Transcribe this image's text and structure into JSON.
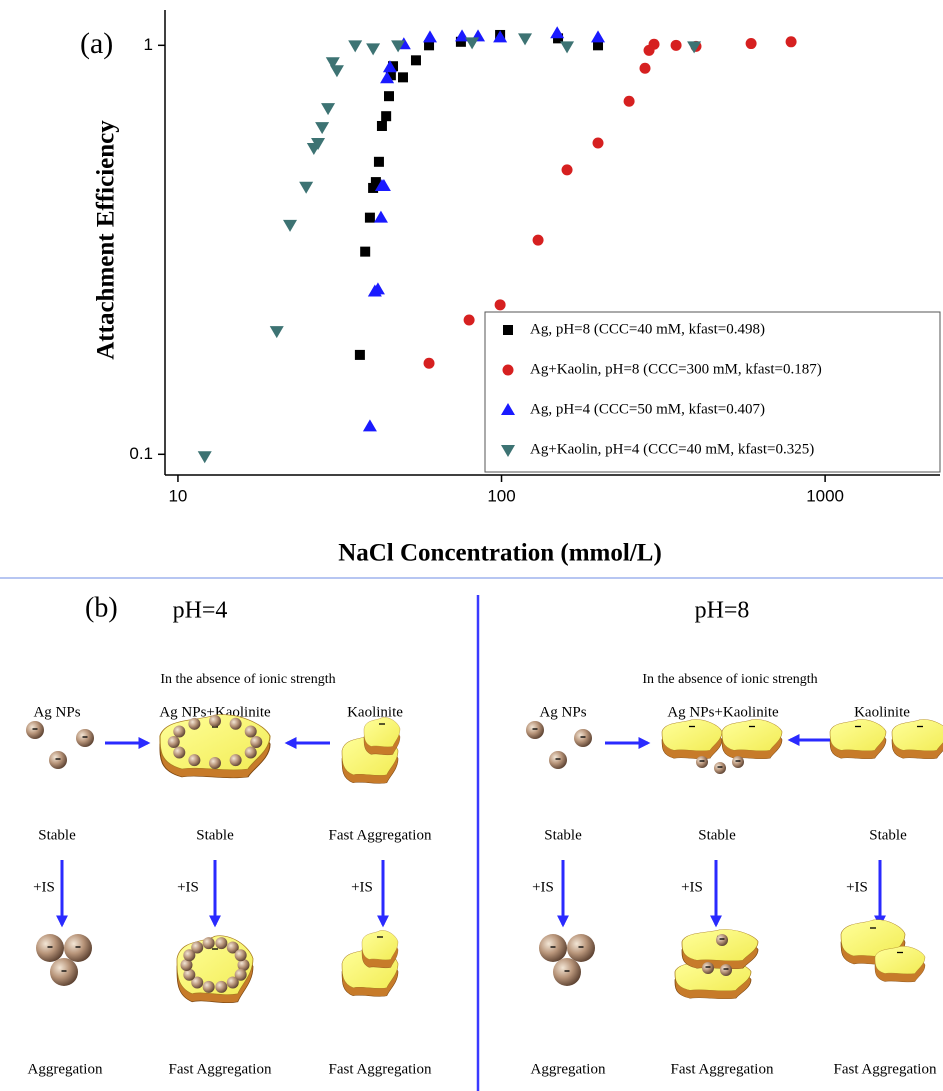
{
  "chart_data": {
    "type": "scatter",
    "panel_label": "(a)",
    "x_label": "NaCl Concentration (mmol/L)",
    "y_label": "Attachment Efficiency",
    "xscale": "log",
    "yscale": "log",
    "xlim": [
      9.12,
      2265
    ],
    "ylim": [
      0.089,
      1.22
    ],
    "xticks": [
      10,
      100,
      1000
    ],
    "yticks": [
      0.1,
      1
    ],
    "legend": "lower right",
    "series": [
      {
        "name": "Ag, pH=8 (CCC=40 mM, kfast=0.498)",
        "color": "#000000",
        "marker": "square",
        "x": [
          36.5,
          37.9,
          39.2,
          40.1,
          40.9,
          41.8,
          42.7,
          44.0,
          44.9,
          45.5,
          46.2,
          49.6,
          54.4,
          59.7,
          74.9,
          99,
          149.5,
          198.7
        ],
        "values": [
          0.175,
          0.313,
          0.379,
          0.448,
          0.463,
          0.519,
          0.635,
          0.671,
          0.751,
          0.845,
          0.889,
          0.835,
          0.919,
          1.0,
          1.02,
          1.06,
          1.04,
          1.0
        ]
      },
      {
        "name": "Ag+Kaolin, pH=8 (CCC=300 mM, kfast=0.187)",
        "color": "#d62020",
        "marker": "circle",
        "x": [
          59.7,
          79.4,
          99,
          129.7,
          159.4,
          198.7,
          247.9,
          277.6,
          285.7,
          296,
          346.3,
          399,
          590.6,
          785
        ],
        "values": [
          0.167,
          0.213,
          0.232,
          0.334,
          0.496,
          0.577,
          0.73,
          0.879,
          0.972,
          1.006,
          1.0,
          0.994,
          1.01,
          1.02
        ]
      },
      {
        "name": "Ag, pH=4 (CCC=50 mM, kfast=0.407)",
        "color": "#1a1aff",
        "marker": "triangle-up",
        "x": [
          39.2,
          40.6,
          41.5,
          42.4,
          42.7,
          43.3,
          44.3,
          45.2,
          49.9,
          60.1,
          75.5,
          84.6,
          99,
          148.6,
          198.7
        ],
        "values": [
          0.117,
          0.25,
          0.253,
          0.379,
          0.453,
          0.453,
          0.831,
          0.884,
          1.006,
          1.046,
          1.052,
          1.052,
          1.046,
          1.07,
          1.046
        ]
      },
      {
        "name": "Ag+Kaolin, pH=4 (CCC=40 mM, kfast=0.325)",
        "color": "#3d7373",
        "marker": "triangle-down",
        "x": [
          12.1,
          20.2,
          22.2,
          24.9,
          26.3,
          27.1,
          27.9,
          29.1,
          30.1,
          31.0,
          35.3,
          40.1,
          47.9,
          81.1,
          118.2,
          159.4,
          393.7
        ],
        "values": [
          0.0989,
          0.2,
          0.364,
          0.451,
          0.561,
          0.577,
          0.631,
          0.702,
          0.909,
          0.869,
          1.0,
          0.983,
          1.0,
          1.017,
          1.04,
          0.994,
          0.994
        ]
      }
    ]
  },
  "figure_b": {
    "label": "(b)",
    "panels": [
      {
        "title": "pH=4",
        "subtitle": "In the absence of ionic strength",
        "columns": [
          {
            "name": "Ag NPs",
            "state": "Stable",
            "step": "+IS",
            "result": "Aggregation"
          },
          {
            "name": "Ag NPs+Kaolinite",
            "state": "Stable",
            "step": "+IS",
            "result": "Fast Aggregation"
          },
          {
            "name": "Kaolinite",
            "state": "Fast Aggregation",
            "step": "+IS",
            "result": "Fast Aggregation"
          }
        ]
      },
      {
        "title": "pH=8",
        "subtitle": "In the absence of ionic strength",
        "columns": [
          {
            "name": "Ag NPs",
            "state": "Stable",
            "step": "+IS",
            "result": "Aggregation"
          },
          {
            "name": "Ag NPs+Kaolinite",
            "state": "Stable",
            "step": "+IS",
            "result": "Fast Aggregation"
          },
          {
            "name": "Kaolinite",
            "state": "Stable",
            "step": "+IS",
            "result": "Fast Aggregation"
          }
        ]
      }
    ]
  }
}
